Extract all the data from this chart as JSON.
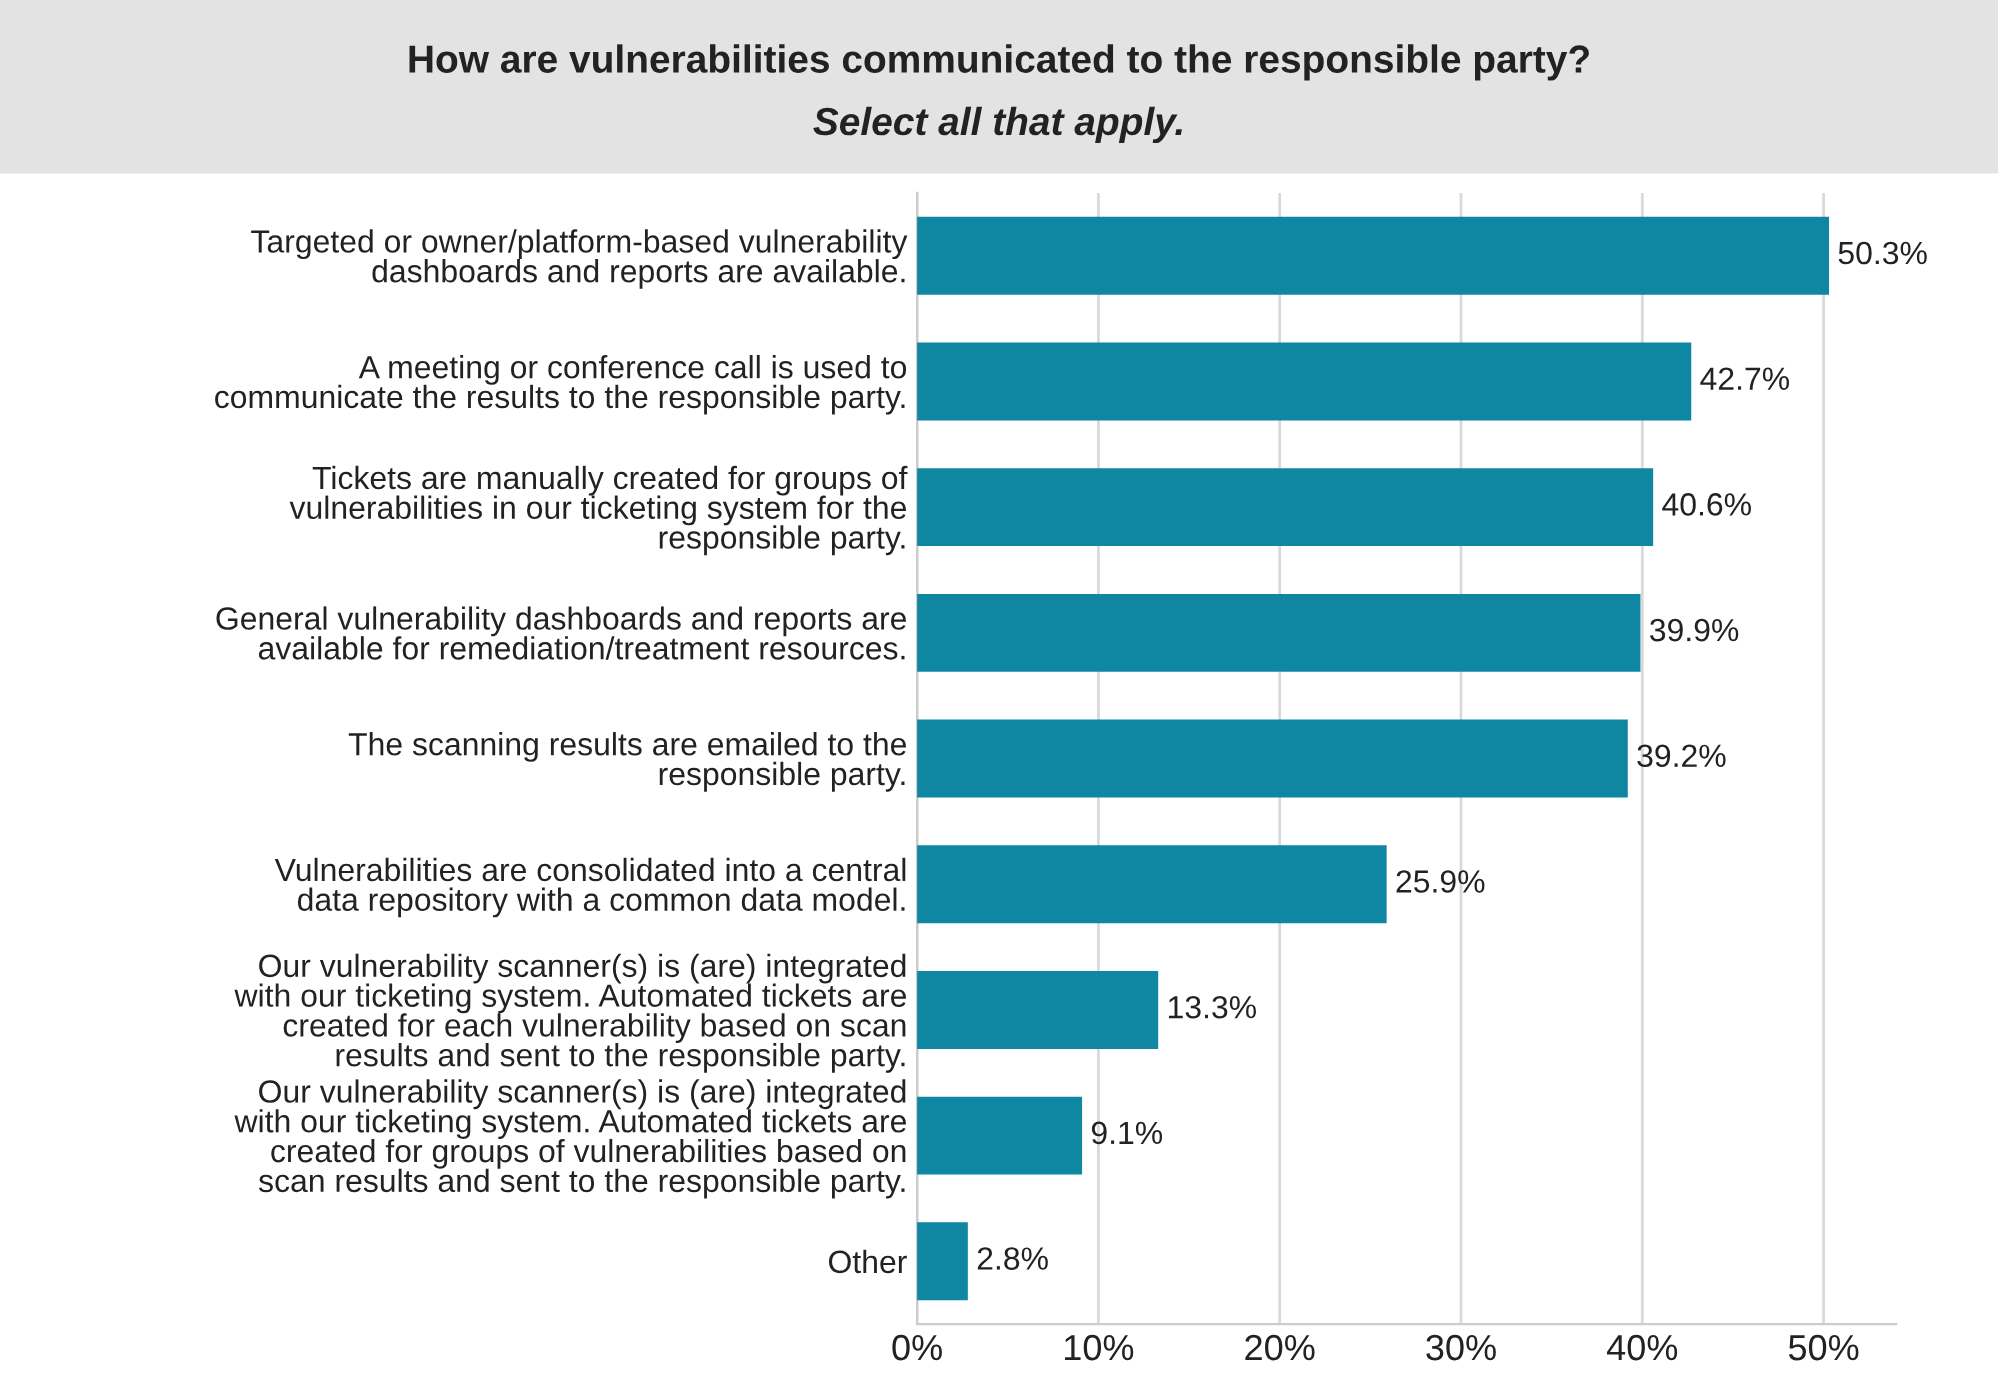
{
  "chart_data": {
    "type": "bar",
    "orientation": "horizontal",
    "title": "How are vulnerabilities communicated to the responsible party?",
    "subtitle": "Select all that apply.",
    "categories": [
      "Targeted or owner/platform-based vulnerability\ndashboards and reports are available.",
      "A meeting or conference call is used to\ncommunicate the results to the responsible party.",
      "Tickets are manually created for groups of\nvulnerabilities in our ticketing system for the\nresponsible party.",
      "General vulnerability dashboards and reports are\navailable for remediation/treatment resources.",
      "The scanning results are emailed to the\nresponsible party.",
      "Vulnerabilities are consolidated into a central\ndata repository with a common data model.",
      "Our vulnerability scanner(s) is (are) integrated\nwith our ticketing system. Automated tickets are\ncreated for each vulnerability based on scan\nresults and sent to the responsible party.",
      "Our vulnerability scanner(s) is (are) integrated\nwith our ticketing system. Automated tickets are\ncreated for groups of vulnerabilities based on\nscan results and sent to the responsible party.",
      "Other"
    ],
    "values": [
      50.3,
      42.7,
      40.6,
      39.9,
      39.2,
      25.9,
      13.3,
      9.1,
      2.8
    ],
    "value_labels": [
      "50.3%",
      "42.7%",
      "40.6%",
      "39.9%",
      "39.2%",
      "25.9%",
      "13.3%",
      "9.1%",
      "2.8%"
    ],
    "color": "#0f87a3",
    "xlim": [
      0,
      54
    ],
    "xticks": [
      {
        "value": 0,
        "label": "0%"
      },
      {
        "value": 10,
        "label": "10%"
      },
      {
        "value": 20,
        "label": "20%"
      },
      {
        "value": 30,
        "label": "30%"
      },
      {
        "value": 40,
        "label": "40%"
      },
      {
        "value": 50,
        "label": "50%"
      }
    ],
    "grid": "x",
    "legend": false
  }
}
